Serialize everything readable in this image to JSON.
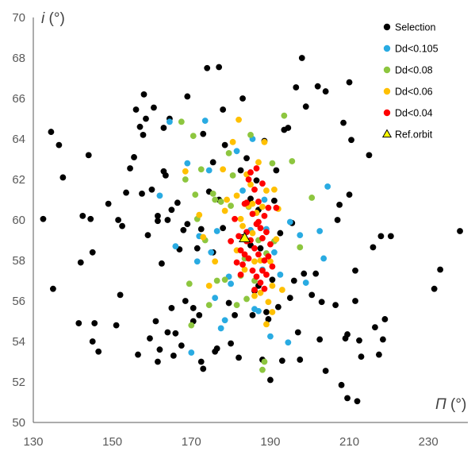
{
  "chart_data": {
    "type": "scatter",
    "title": "",
    "xlabel": "Π (°)",
    "ylabel": "i (°)",
    "xlabel_var": "Π",
    "ylabel_var": "i",
    "unit": " (°)",
    "xlim": [
      130,
      240
    ],
    "ylim": [
      50,
      70
    ],
    "xticks": [
      130,
      150,
      170,
      190,
      210,
      230
    ],
    "yticks": [
      50,
      52,
      54,
      56,
      58,
      60,
      62,
      64,
      66,
      68,
      70
    ],
    "grid": false,
    "legend_position": "top-right",
    "series": [
      {
        "name": "Selection",
        "color": "#000000",
        "marker": "circle",
        "points": [
          [
            132.5,
            60.05
          ],
          [
            134.5,
            64.35
          ],
          [
            135.0,
            56.6
          ],
          [
            136.5,
            63.7
          ],
          [
            137.5,
            62.1
          ],
          [
            141.5,
            54.9
          ],
          [
            142.0,
            57.9
          ],
          [
            142.5,
            60.2
          ],
          [
            144.0,
            63.2
          ],
          [
            144.5,
            60.05
          ],
          [
            145.0,
            58.4
          ],
          [
            145.0,
            54.0
          ],
          [
            145.5,
            54.9
          ],
          [
            146.5,
            53.5
          ],
          [
            149.0,
            60.8
          ],
          [
            151.0,
            54.8
          ],
          [
            151.5,
            60.0
          ],
          [
            152.0,
            56.3
          ],
          [
            152.5,
            59.7
          ],
          [
            153.5,
            61.35
          ],
          [
            154.5,
            62.55
          ],
          [
            155.5,
            63.1
          ],
          [
            156.0,
            65.45
          ],
          [
            156.5,
            53.35
          ],
          [
            157.0,
            64.6
          ],
          [
            157.5,
            61.3
          ],
          [
            157.8,
            64.2
          ],
          [
            158.0,
            66.2
          ],
          [
            158.5,
            65.0
          ],
          [
            159.0,
            59.25
          ],
          [
            159.5,
            54.15
          ],
          [
            160.0,
            61.5
          ],
          [
            160.5,
            65.55
          ],
          [
            161.0,
            55.0
          ],
          [
            161.5,
            53.0
          ],
          [
            161.5,
            60.2
          ],
          [
            161.5,
            59.95
          ],
          [
            162.0,
            53.6
          ],
          [
            162.5,
            57.85
          ],
          [
            163.0,
            62.4
          ],
          [
            163.0,
            64.55
          ],
          [
            163.5,
            62.2
          ],
          [
            164.0,
            54.45
          ],
          [
            164.0,
            60.0
          ],
          [
            164.5,
            65.0
          ],
          [
            165.0,
            55.65
          ],
          [
            165.0,
            60.5
          ],
          [
            165.5,
            53.3
          ],
          [
            166.0,
            54.4
          ],
          [
            166.5,
            60.85
          ],
          [
            167.0,
            58.55
          ],
          [
            167.5,
            53.8
          ],
          [
            168.0,
            59.5
          ],
          [
            168.5,
            56.0
          ],
          [
            169.0,
            59.8
          ],
          [
            169.0,
            66.1
          ],
          [
            170.5,
            55.0
          ],
          [
            170.5,
            55.65
          ],
          [
            171.5,
            58.6
          ],
          [
            172.0,
            55.3
          ],
          [
            172.5,
            53.0
          ],
          [
            172.5,
            59.55
          ],
          [
            173.0,
            64.25
          ],
          [
            173.0,
            52.65
          ],
          [
            174.0,
            67.5
          ],
          [
            174.5,
            61.4
          ],
          [
            175.5,
            58.4
          ],
          [
            175.5,
            62.85
          ],
          [
            176.0,
            53.5
          ],
          [
            176.5,
            53.65
          ],
          [
            177.0,
            67.55
          ],
          [
            177.0,
            61.0
          ],
          [
            178.0,
            59.6
          ],
          [
            178.0,
            65.45
          ],
          [
            178.5,
            63.7
          ],
          [
            179.5,
            55.9
          ],
          [
            180.0,
            53.9
          ],
          [
            181.0,
            55.3
          ],
          [
            182.0,
            53.2
          ],
          [
            182.5,
            62.45
          ],
          [
            183.0,
            66.0
          ],
          [
            183.0,
            59.15
          ],
          [
            184.0,
            63.05
          ],
          [
            184.5,
            60.85
          ],
          [
            185.0,
            61.05
          ],
          [
            185.0,
            58.75
          ],
          [
            185.5,
            55.3
          ],
          [
            186.0,
            56.5
          ],
          [
            186.5,
            61.95
          ],
          [
            187.0,
            56.75
          ],
          [
            187.0,
            60.5
          ],
          [
            187.5,
            58.6
          ],
          [
            188.0,
            53.1
          ],
          [
            188.5,
            63.9
          ],
          [
            189.0,
            55.45
          ],
          [
            189.5,
            55.1
          ],
          [
            190.0,
            52.1
          ],
          [
            190.5,
            57.05
          ],
          [
            191.0,
            60.95
          ],
          [
            191.5,
            62.45
          ],
          [
            192.0,
            55.7
          ],
          [
            192.5,
            59.35
          ],
          [
            193.0,
            53.05
          ],
          [
            193.5,
            64.45
          ],
          [
            194.5,
            64.55
          ],
          [
            195.0,
            56.15
          ],
          [
            195.5,
            59.85
          ],
          [
            196.0,
            57.0
          ],
          [
            196.5,
            66.55
          ],
          [
            197.0,
            54.45
          ],
          [
            197.5,
            53.1
          ],
          [
            198.0,
            68.0
          ],
          [
            198.5,
            57.35
          ],
          [
            199.0,
            65.6
          ],
          [
            200.5,
            56.3
          ],
          [
            201.5,
            57.35
          ],
          [
            202.0,
            66.6
          ],
          [
            202.5,
            54.1
          ],
          [
            203.0,
            55.95
          ],
          [
            204.0,
            52.55
          ],
          [
            204.0,
            66.35
          ],
          [
            206.5,
            55.8
          ],
          [
            207.0,
            60.0
          ],
          [
            207.5,
            60.75
          ],
          [
            208.0,
            51.85
          ],
          [
            208.5,
            64.8
          ],
          [
            209.0,
            54.15
          ],
          [
            209.5,
            54.35
          ],
          [
            209.5,
            51.2
          ],
          [
            210.0,
            61.25
          ],
          [
            210.0,
            66.8
          ],
          [
            210.5,
            63.95
          ],
          [
            211.5,
            56.0
          ],
          [
            211.5,
            57.5
          ],
          [
            212.0,
            51.05
          ],
          [
            212.5,
            54.05
          ],
          [
            213.0,
            53.25
          ],
          [
            215.0,
            63.2
          ],
          [
            216.0,
            58.65
          ],
          [
            216.5,
            54.7
          ],
          [
            217.5,
            53.35
          ],
          [
            218.0,
            59.2
          ],
          [
            218.5,
            54.1
          ],
          [
            219.0,
            55.1
          ],
          [
            220.5,
            59.2
          ],
          [
            231.5,
            56.6
          ],
          [
            233.0,
            57.55
          ],
          [
            238.0,
            59.45
          ]
        ]
      },
      {
        "name": "Dd<0.105",
        "color": "#29ABE2",
        "marker": "circle",
        "points": [
          [
            164.5,
            64.85
          ],
          [
            169.0,
            62.8
          ],
          [
            171.5,
            57.95
          ],
          [
            172.0,
            59.2
          ],
          [
            173.5,
            64.9
          ],
          [
            174.5,
            62.45
          ],
          [
            175.0,
            58.4
          ],
          [
            176.0,
            56.15
          ],
          [
            176.5,
            59.45
          ],
          [
            177.5,
            54.65
          ],
          [
            178.5,
            55.05
          ],
          [
            179.5,
            57.2
          ],
          [
            180.0,
            56.85
          ],
          [
            181.5,
            63.4
          ],
          [
            183.0,
            61.45
          ],
          [
            185.5,
            64.0
          ],
          [
            186.0,
            55.6
          ],
          [
            187.0,
            55.5
          ],
          [
            188.0,
            57.55
          ],
          [
            188.5,
            61.0
          ],
          [
            189.0,
            59.55
          ],
          [
            190.0,
            54.25
          ],
          [
            191.0,
            58.4
          ],
          [
            192.5,
            57.3
          ],
          [
            194.5,
            53.95
          ],
          [
            195.0,
            59.9
          ],
          [
            197.5,
            59.25
          ],
          [
            199.0,
            56.9
          ],
          [
            202.5,
            59.45
          ],
          [
            203.5,
            58.1
          ],
          [
            204.5,
            61.65
          ],
          [
            166.0,
            58.7
          ],
          [
            170.0,
            53.45
          ],
          [
            185.0,
            59.5
          ],
          [
            162.0,
            61.2
          ]
        ]
      },
      {
        "name": "Dd<0.08",
        "color": "#8DC63F",
        "marker": "circle",
        "points": [
          [
            167.5,
            64.85
          ],
          [
            169.5,
            56.85
          ],
          [
            170.0,
            54.8
          ],
          [
            170.5,
            64.15
          ],
          [
            171.0,
            61.25
          ],
          [
            171.5,
            60.05
          ],
          [
            172.5,
            62.5
          ],
          [
            173.5,
            59.0
          ],
          [
            174.5,
            55.8
          ],
          [
            175.5,
            61.3
          ],
          [
            176.0,
            61.0
          ],
          [
            176.5,
            57.0
          ],
          [
            177.5,
            60.9
          ],
          [
            178.5,
            57.05
          ],
          [
            179.5,
            63.3
          ],
          [
            180.5,
            62.2
          ],
          [
            181.5,
            55.8
          ],
          [
            182.5,
            57.25
          ],
          [
            183.5,
            58.1
          ],
          [
            184.0,
            56.1
          ],
          [
            185.0,
            64.2
          ],
          [
            186.0,
            57.0
          ],
          [
            187.0,
            59.0
          ],
          [
            188.0,
            52.6
          ],
          [
            188.5,
            53.0
          ],
          [
            189.0,
            58.35
          ],
          [
            190.5,
            62.8
          ],
          [
            191.0,
            58.95
          ],
          [
            193.5,
            65.15
          ],
          [
            195.5,
            62.9
          ],
          [
            197.5,
            58.65
          ],
          [
            200.5,
            61.1
          ],
          [
            168.5,
            62.0
          ],
          [
            180.0,
            60.7
          ],
          [
            184.5,
            60.65
          ]
        ]
      },
      {
        "name": "Dd<0.06",
        "color": "#FFC000",
        "marker": "circle",
        "points": [
          [
            168.5,
            62.4
          ],
          [
            172.0,
            60.25
          ],
          [
            173.0,
            59.15
          ],
          [
            174.5,
            56.75
          ],
          [
            176.0,
            57.95
          ],
          [
            178.0,
            62.5
          ],
          [
            179.0,
            61.0
          ],
          [
            180.5,
            63.85
          ],
          [
            181.5,
            58.5
          ],
          [
            182.0,
            64.95
          ],
          [
            182.5,
            60.05
          ],
          [
            183.0,
            59.7
          ],
          [
            183.5,
            57.55
          ],
          [
            184.0,
            62.25
          ],
          [
            184.5,
            60.7
          ],
          [
            185.0,
            61.75
          ],
          [
            185.5,
            59.35
          ],
          [
            186.0,
            57.95
          ],
          [
            186.0,
            56.25
          ],
          [
            186.5,
            60.35
          ],
          [
            187.0,
            62.85
          ],
          [
            187.5,
            58.0
          ],
          [
            188.0,
            60.65
          ],
          [
            188.5,
            63.85
          ],
          [
            189.0,
            61.45
          ],
          [
            189.5,
            55.95
          ],
          [
            190.0,
            57.95
          ],
          [
            190.5,
            55.45
          ],
          [
            191.0,
            61.5
          ],
          [
            191.5,
            59.05
          ],
          [
            192.0,
            60.55
          ],
          [
            193.0,
            56.55
          ],
          [
            181.5,
            61.2
          ],
          [
            183.0,
            59.1
          ],
          [
            185.5,
            60.8
          ],
          [
            187.5,
            56.4
          ],
          [
            189.0,
            54.85
          ],
          [
            178.5,
            60.45
          ],
          [
            190.5,
            56.75
          ]
        ]
      },
      {
        "name": "Dd<0.04",
        "color": "#FF0000",
        "marker": "circle",
        "points": [
          [
            180.0,
            58.95
          ],
          [
            181.0,
            60.05
          ],
          [
            181.5,
            57.9
          ],
          [
            182.0,
            59.2
          ],
          [
            182.5,
            58.5
          ],
          [
            183.0,
            57.8
          ],
          [
            183.5,
            60.8
          ],
          [
            184.0,
            59.4
          ],
          [
            184.5,
            58.1
          ],
          [
            184.5,
            62.0
          ],
          [
            185.0,
            59.0
          ],
          [
            185.5,
            57.5
          ],
          [
            185.5,
            60.3
          ],
          [
            186.0,
            58.6
          ],
          [
            186.0,
            61.5
          ],
          [
            186.5,
            59.8
          ],
          [
            186.5,
            57.2
          ],
          [
            187.0,
            60.9
          ],
          [
            187.0,
            58.3
          ],
          [
            187.5,
            59.6
          ],
          [
            187.5,
            56.9
          ],
          [
            188.0,
            61.8
          ],
          [
            188.0,
            59.1
          ],
          [
            188.5,
            60.2
          ],
          [
            188.5,
            58.0
          ],
          [
            189.0,
            59.4
          ],
          [
            189.0,
            57.3
          ],
          [
            189.5,
            60.6
          ],
          [
            190.0,
            58.8
          ],
          [
            190.5,
            57.7
          ],
          [
            185.0,
            62.35
          ],
          [
            184.0,
            60.85
          ],
          [
            186.5,
            62.55
          ],
          [
            188.0,
            57.5
          ],
          [
            186.0,
            56.55
          ],
          [
            183.5,
            58.3
          ],
          [
            187.0,
            59.9
          ],
          [
            188.5,
            56.6
          ],
          [
            184.0,
            58.95
          ],
          [
            189.5,
            58.2
          ],
          [
            191.5,
            60.6
          ],
          [
            182.5,
            57.3
          ]
        ]
      },
      {
        "name": "Ref.orbit",
        "color": "#FFFF00",
        "marker": "triangle",
        "points": [
          [
            183.5,
            59.1
          ]
        ]
      }
    ]
  }
}
